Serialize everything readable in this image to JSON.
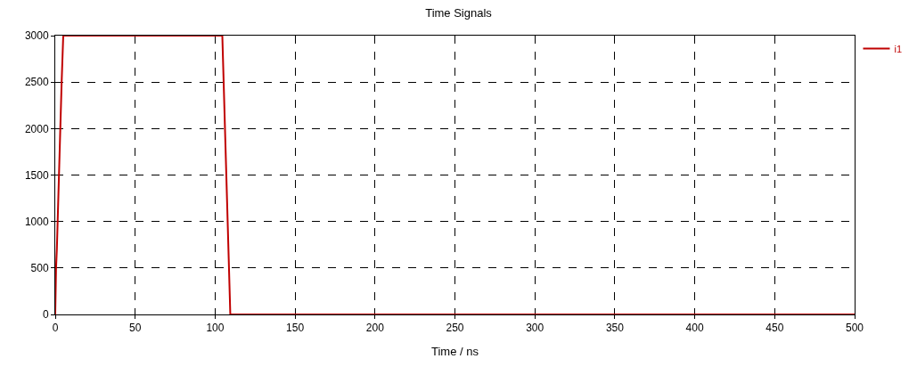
{
  "chart_data": {
    "type": "line",
    "title": "Time Signals",
    "xlabel": "Time / ns",
    "series": [
      {
        "name": "i1",
        "color": "#c00000",
        "x": [
          0,
          0.5,
          1,
          2,
          3,
          4,
          5,
          104.5,
          105.5,
          106.5,
          107.5,
          108.5,
          109.5,
          500
        ],
        "values": [
          0,
          500,
          700,
          1300,
          1900,
          2500,
          3000,
          3000,
          2400,
          1800,
          1200,
          600,
          0,
          0
        ]
      }
    ],
    "xlim": [
      0,
      500
    ],
    "xticks": [
      0,
      50,
      100,
      150,
      200,
      250,
      300,
      350,
      400,
      450,
      500
    ],
    "ylim": [
      0,
      3000
    ],
    "yticks": [
      0,
      500,
      1000,
      1500,
      2000,
      2500,
      3000
    ],
    "grid": true,
    "legend": "top right",
    "marker": "none",
    "line_style": "solid"
  }
}
